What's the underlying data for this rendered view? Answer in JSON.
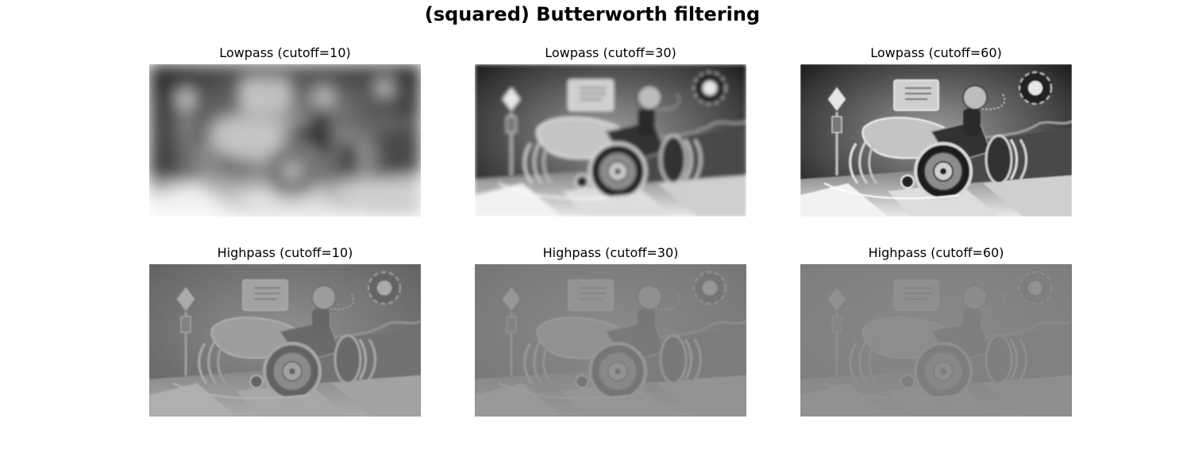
{
  "figure": {
    "title": "(squared) Butterworth filtering",
    "panels": [
      {
        "title": "Lowpass (cutoff=10)",
        "filter": "lowpass",
        "cutoff": 10
      },
      {
        "title": "Lowpass (cutoff=30)",
        "filter": "lowpass",
        "cutoff": 30
      },
      {
        "title": "Lowpass (cutoff=60)",
        "filter": "lowpass",
        "cutoff": 60
      },
      {
        "title": "Highpass (cutoff=10)",
        "filter": "highpass",
        "cutoff": 10
      },
      {
        "title": "Highpass (cutoff=30)",
        "filter": "highpass",
        "cutoff": 30
      },
      {
        "title": "Highpass (cutoff=60)",
        "filter": "highpass",
        "cutoff": 60
      }
    ],
    "colormap": "gray"
  }
}
